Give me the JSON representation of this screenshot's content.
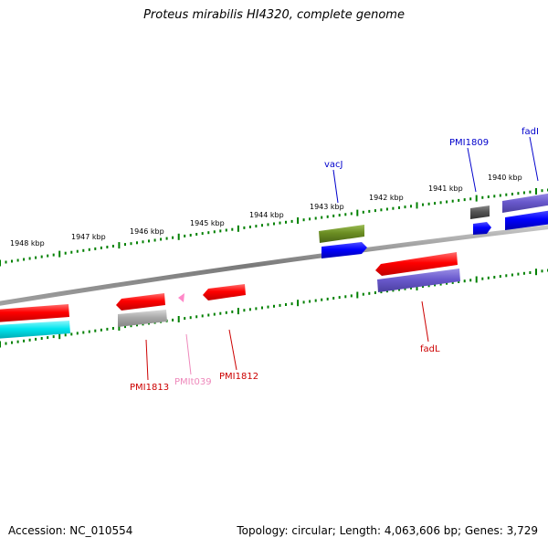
{
  "title": "Proteus mirabilis HI4320, complete genome",
  "footer": {
    "accession": "Accession: NC_010554",
    "summary": "Topology: circular; Length: 4,063,606 bp; Genes: 3,729"
  },
  "colors": {
    "backbone": "#8a8a8a",
    "ticks": "#008000",
    "gene_red": "#ff0000",
    "gene_blue": "#0000ff",
    "gene_purple": "#6a5acd",
    "gene_cyan": "#00e5ee",
    "gene_olive": "#6b8e23",
    "gene_grey": "#a9a9a9",
    "gene_darkgrey": "#5a5a5a",
    "gene_pink": "#ff69b4"
  },
  "scale_labels": [
    "1948 kbp",
    "1947 kbp",
    "1946 kbp",
    "1945 kbp",
    "1944 kbp",
    "1943 kbp",
    "1942 kbp",
    "1941 kbp",
    "1940 kbp"
  ],
  "gene_labels": [
    {
      "name": "vacJ",
      "color": "#0000cc"
    },
    {
      "name": "PMI1809",
      "color": "#0000cc"
    },
    {
      "name": "fadI",
      "color": "#0000cc"
    },
    {
      "name": "PMI1813",
      "color": "#cc0000"
    },
    {
      "name": "PMIt039",
      "color": "#ee88bb"
    },
    {
      "name": "PMI1812",
      "color": "#cc0000"
    },
    {
      "name": "fadL",
      "color": "#cc0000"
    }
  ]
}
